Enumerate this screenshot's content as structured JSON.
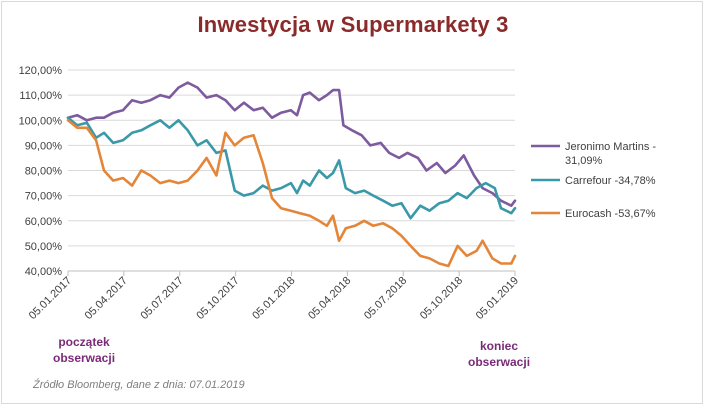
{
  "chart_data": {
    "type": "line",
    "title": "Inwestycja w Supermarkety 3",
    "x_ticks": [
      "05.01.2017",
      "05.04.2017",
      "05.07.2017",
      "05.10.2017",
      "05.01.2018",
      "05.04.2018",
      "05.07.2018",
      "05.10.2018",
      "05.01.2019"
    ],
    "y_ticks": [
      "40,00%",
      "50,00%",
      "60,00%",
      "70,00%",
      "80,00%",
      "90,00%",
      "100,00%",
      "110,00%",
      "120,00%"
    ],
    "ylim": [
      40,
      120
    ],
    "xlim": [
      "2017-01-05",
      "2019-01-07"
    ],
    "grid": "horizontal",
    "legend_position": "right",
    "series": [
      {
        "name": "Jeronimo Martins - 31,09%",
        "color": "#7d5b9e",
        "points": [
          [
            "2017-01-05",
            101
          ],
          [
            "2017-01-20",
            102
          ],
          [
            "2017-02-05",
            100
          ],
          [
            "2017-02-20",
            101
          ],
          [
            "2017-03-05",
            101
          ],
          [
            "2017-03-20",
            103
          ],
          [
            "2017-04-05",
            104
          ],
          [
            "2017-04-20",
            108
          ],
          [
            "2017-05-05",
            107
          ],
          [
            "2017-05-20",
            108
          ],
          [
            "2017-06-05",
            110
          ],
          [
            "2017-06-20",
            109
          ],
          [
            "2017-07-05",
            113
          ],
          [
            "2017-07-20",
            115
          ],
          [
            "2017-08-05",
            113
          ],
          [
            "2017-08-20",
            109
          ],
          [
            "2017-09-05",
            110
          ],
          [
            "2017-09-20",
            108
          ],
          [
            "2017-10-05",
            104
          ],
          [
            "2017-10-20",
            107
          ],
          [
            "2017-11-05",
            104
          ],
          [
            "2017-11-20",
            105
          ],
          [
            "2017-12-05",
            101
          ],
          [
            "2017-12-20",
            103
          ],
          [
            "2018-01-05",
            104
          ],
          [
            "2018-01-15",
            102
          ],
          [
            "2018-01-25",
            110
          ],
          [
            "2018-02-05",
            111
          ],
          [
            "2018-02-20",
            108
          ],
          [
            "2018-03-05",
            110
          ],
          [
            "2018-03-15",
            112
          ],
          [
            "2018-03-25",
            112
          ],
          [
            "2018-04-01",
            98
          ],
          [
            "2018-04-15",
            96
          ],
          [
            "2018-05-01",
            94
          ],
          [
            "2018-05-15",
            90
          ],
          [
            "2018-06-01",
            91
          ],
          [
            "2018-06-15",
            87
          ],
          [
            "2018-07-01",
            85
          ],
          [
            "2018-07-15",
            87
          ],
          [
            "2018-08-01",
            85
          ],
          [
            "2018-08-15",
            80
          ],
          [
            "2018-09-01",
            83
          ],
          [
            "2018-09-15",
            79
          ],
          [
            "2018-10-01",
            82
          ],
          [
            "2018-10-15",
            86
          ],
          [
            "2018-11-01",
            78
          ],
          [
            "2018-11-15",
            73
          ],
          [
            "2018-12-01",
            71
          ],
          [
            "2018-12-15",
            68
          ],
          [
            "2019-01-01",
            66
          ],
          [
            "2019-01-07",
            68
          ]
        ]
      },
      {
        "name": "Carrefour -34,78%",
        "color": "#3a99a8",
        "points": [
          [
            "2017-01-05",
            101
          ],
          [
            "2017-01-20",
            98
          ],
          [
            "2017-02-05",
            99
          ],
          [
            "2017-02-20",
            93
          ],
          [
            "2017-03-05",
            95
          ],
          [
            "2017-03-20",
            91
          ],
          [
            "2017-04-05",
            92
          ],
          [
            "2017-04-20",
            95
          ],
          [
            "2017-05-05",
            96
          ],
          [
            "2017-05-20",
            98
          ],
          [
            "2017-06-05",
            100
          ],
          [
            "2017-06-20",
            97
          ],
          [
            "2017-07-05",
            100
          ],
          [
            "2017-07-20",
            96
          ],
          [
            "2017-08-05",
            90
          ],
          [
            "2017-08-20",
            92
          ],
          [
            "2017-09-05",
            87
          ],
          [
            "2017-09-20",
            88
          ],
          [
            "2017-10-05",
            72
          ],
          [
            "2017-10-20",
            70
          ],
          [
            "2017-11-05",
            71
          ],
          [
            "2017-11-20",
            74
          ],
          [
            "2017-12-05",
            72
          ],
          [
            "2017-12-20",
            73
          ],
          [
            "2018-01-05",
            75
          ],
          [
            "2018-01-15",
            71
          ],
          [
            "2018-01-25",
            76
          ],
          [
            "2018-02-05",
            74
          ],
          [
            "2018-02-20",
            80
          ],
          [
            "2018-03-05",
            77
          ],
          [
            "2018-03-15",
            79
          ],
          [
            "2018-03-25",
            84
          ],
          [
            "2018-04-05",
            73
          ],
          [
            "2018-04-20",
            71
          ],
          [
            "2018-05-05",
            72
          ],
          [
            "2018-05-20",
            70
          ],
          [
            "2018-06-05",
            68
          ],
          [
            "2018-06-20",
            66
          ],
          [
            "2018-07-05",
            67
          ],
          [
            "2018-07-20",
            61
          ],
          [
            "2018-08-05",
            66
          ],
          [
            "2018-08-20",
            64
          ],
          [
            "2018-09-05",
            67
          ],
          [
            "2018-09-20",
            68
          ],
          [
            "2018-10-05",
            71
          ],
          [
            "2018-10-20",
            69
          ],
          [
            "2018-11-05",
            73
          ],
          [
            "2018-11-20",
            75
          ],
          [
            "2018-12-05",
            73
          ],
          [
            "2018-12-15",
            65
          ],
          [
            "2019-01-01",
            63
          ],
          [
            "2019-01-07",
            65
          ]
        ]
      },
      {
        "name": "Eurocash -53,67%",
        "color": "#e3863a",
        "points": [
          [
            "2017-01-05",
            100
          ],
          [
            "2017-01-20",
            97
          ],
          [
            "2017-02-05",
            97
          ],
          [
            "2017-02-20",
            92
          ],
          [
            "2017-03-05",
            80
          ],
          [
            "2017-03-20",
            76
          ],
          [
            "2017-04-05",
            77
          ],
          [
            "2017-04-20",
            74
          ],
          [
            "2017-05-05",
            80
          ],
          [
            "2017-05-20",
            78
          ],
          [
            "2017-06-05",
            75
          ],
          [
            "2017-06-20",
            76
          ],
          [
            "2017-07-05",
            75
          ],
          [
            "2017-07-20",
            76
          ],
          [
            "2017-08-05",
            80
          ],
          [
            "2017-08-20",
            85
          ],
          [
            "2017-09-05",
            78
          ],
          [
            "2017-09-20",
            95
          ],
          [
            "2017-10-05",
            90
          ],
          [
            "2017-10-20",
            93
          ],
          [
            "2017-11-05",
            94
          ],
          [
            "2017-11-20",
            83
          ],
          [
            "2017-12-05",
            69
          ],
          [
            "2017-12-20",
            65
          ],
          [
            "2018-01-05",
            64
          ],
          [
            "2018-01-20",
            63
          ],
          [
            "2018-02-05",
            62
          ],
          [
            "2018-02-20",
            60
          ],
          [
            "2018-03-05",
            58
          ],
          [
            "2018-03-15",
            62
          ],
          [
            "2018-03-25",
            52
          ],
          [
            "2018-04-05",
            57
          ],
          [
            "2018-04-20",
            58
          ],
          [
            "2018-05-05",
            60
          ],
          [
            "2018-05-20",
            58
          ],
          [
            "2018-06-05",
            59
          ],
          [
            "2018-06-20",
            57
          ],
          [
            "2018-07-05",
            54
          ],
          [
            "2018-07-20",
            50
          ],
          [
            "2018-08-05",
            46
          ],
          [
            "2018-08-20",
            45
          ],
          [
            "2018-09-05",
            43
          ],
          [
            "2018-09-20",
            42
          ],
          [
            "2018-10-05",
            50
          ],
          [
            "2018-10-20",
            46
          ],
          [
            "2018-11-05",
            48
          ],
          [
            "2018-11-15",
            52
          ],
          [
            "2018-12-01",
            45
          ],
          [
            "2018-12-15",
            43
          ],
          [
            "2019-01-01",
            43
          ],
          [
            "2019-01-07",
            46
          ]
        ]
      }
    ]
  },
  "annotations": {
    "start_line1": "początek",
    "start_line2": "obserwacji",
    "end_line1": "koniec",
    "end_line2": "obserwacji",
    "source": "Źródło Bloomberg, dane z dnia: 07.01.2019"
  }
}
